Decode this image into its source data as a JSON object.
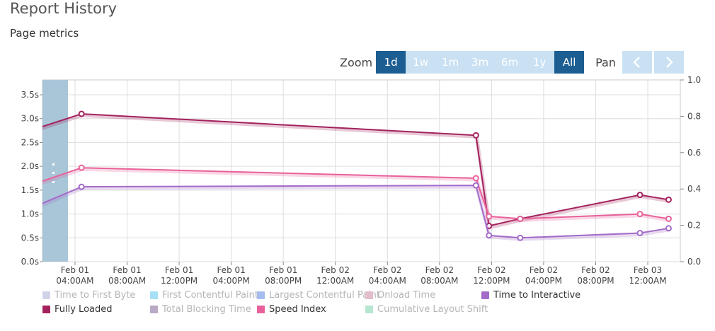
{
  "header": {
    "title": "Report History",
    "subtitle": "Page metrics"
  },
  "toolbar": {
    "zoom_label": "Zoom",
    "zoom_options": [
      "1d",
      "1w",
      "1m",
      "3m",
      "6m",
      "1y",
      "All"
    ],
    "zoom_active": "All",
    "zoom_highlight": "1d",
    "pan_label": "Pan"
  },
  "colors": {
    "accent": "#1d5e92",
    "button_light": "#c9e1f3",
    "navigator": "#a9c6d8",
    "fully_loaded": "#a3225d",
    "speed_index": "#e8619a",
    "time_to_interactive": "#a46bc9"
  },
  "chart_data": {
    "type": "line",
    "left_axis": {
      "min": 0,
      "max": 3.5,
      "ticks": [
        "0.0s",
        "0.5s",
        "1.0s",
        "1.5s",
        "2.0s",
        "2.5s",
        "3.0s",
        "3.5s"
      ]
    },
    "right_axis": {
      "min": 0,
      "max": 1.0,
      "ticks": [
        "0.0",
        "0.2",
        "0.4",
        "0.6",
        "0.8",
        "1.0"
      ]
    },
    "x_ticks": [
      [
        "Feb 01",
        "04:00AM"
      ],
      [
        "Feb 01",
        "08:00AM"
      ],
      [
        "Feb 01",
        "12:00PM"
      ],
      [
        "Feb 01",
        "04:00PM"
      ],
      [
        "Feb 01",
        "08:00PM"
      ],
      [
        "Feb 02",
        "12:00AM"
      ],
      [
        "Feb 02",
        "04:00AM"
      ],
      [
        "Feb 02",
        "08:00AM"
      ],
      [
        "Feb 02",
        "12:00PM"
      ],
      [
        "Feb 02",
        "04:00PM"
      ],
      [
        "Feb 02",
        "08:00PM"
      ],
      [
        "Feb 03",
        "12:00AM"
      ],
      [
        "Feb 03",
        "04:00AM"
      ]
    ],
    "x_start_hours": 1.5,
    "x_end_hours": 50.5,
    "grid": true,
    "series": [
      {
        "name": "Fully Loaded",
        "color": "#a3225d",
        "x_hours": [
          0,
          4.5,
          34.8,
          35.8,
          38.2,
          47.4,
          49.6
        ],
        "values": [
          2.7,
          3.1,
          2.65,
          0.75,
          0.9,
          1.4,
          1.3
        ],
        "marker_from": 1
      },
      {
        "name": "Speed Index",
        "color": "#e8619a",
        "x_hours": [
          0,
          4.5,
          34.8,
          35.8,
          38.2,
          47.4,
          49.6
        ],
        "values": [
          1.55,
          1.97,
          1.75,
          0.95,
          0.9,
          1.0,
          0.9
        ],
        "marker_from": 1
      },
      {
        "name": "Time to Interactive",
        "color": "#a46bc9",
        "x_hours": [
          0,
          4.5,
          34.8,
          35.8,
          38.2,
          47.4,
          49.6
        ],
        "values": [
          1.05,
          1.57,
          1.6,
          0.55,
          0.5,
          0.6,
          0.7
        ],
        "marker_from": 1
      }
    ],
    "legend": [
      {
        "label": "Time to First Byte",
        "color": "#d0d3e8",
        "enabled": false
      },
      {
        "label": "First Contentful Paint",
        "color": "#a6dff6",
        "enabled": false
      },
      {
        "label": "Largest Contentful Paint",
        "color": "#a7bdf0",
        "enabled": false
      },
      {
        "label": "Onload Time",
        "color": "#e3bccd",
        "enabled": false
      },
      {
        "label": "Time to Interactive",
        "color": "#a46bc9",
        "enabled": true
      },
      {
        "label": "Fully Loaded",
        "color": "#a3225d",
        "enabled": true
      },
      {
        "label": "Total Blocking Time",
        "color": "#b9a9c5",
        "enabled": false
      },
      {
        "label": "Speed Index",
        "color": "#e8619a",
        "enabled": true
      },
      {
        "label": "Cumulative Layout Shift",
        "color": "#b6e6cf",
        "enabled": false
      }
    ]
  }
}
